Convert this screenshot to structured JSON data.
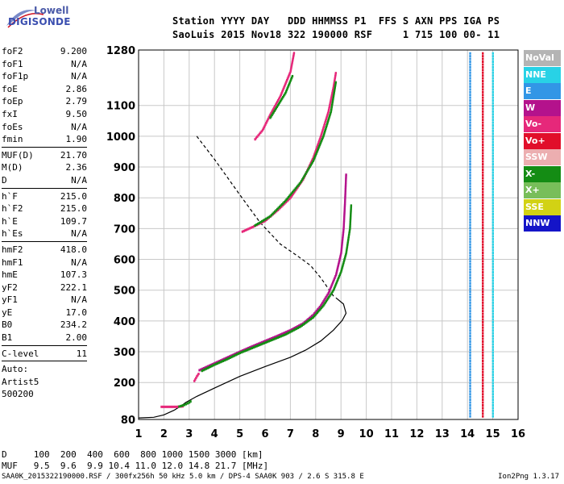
{
  "logo": {
    "top": "Lowell",
    "bottom": "DIGISONDE"
  },
  "header": {
    "line1": "Station YYYY DAY   DDD HHMMSS P1  FFS S AXN PPS IGA PS",
    "line2": "SaoLuis 2015 Nov18 322 190000 RSF     1 715 100 00- 11"
  },
  "params": [
    {
      "name": "foF2",
      "value": "9.200"
    },
    {
      "name": "foF1",
      "value": "N/A"
    },
    {
      "name": "foF1p",
      "value": "N/A"
    },
    {
      "name": "foE",
      "value": "2.86"
    },
    {
      "name": "foEp",
      "value": "2.79"
    },
    {
      "name": "fxI",
      "value": "9.50"
    },
    {
      "name": "foEs",
      "value": "N/A"
    },
    {
      "name": "fmin",
      "value": "1.90"
    },
    {
      "sep": true
    },
    {
      "name": "MUF(D)",
      "value": "21.70"
    },
    {
      "name": "M(D)",
      "value": "2.36"
    },
    {
      "name": "D",
      "value": "N/A"
    },
    {
      "sep": true
    },
    {
      "name": "h`F",
      "value": "215.0"
    },
    {
      "name": "h`F2",
      "value": "215.0"
    },
    {
      "name": "h`E",
      "value": "109.7"
    },
    {
      "name": "h`Es",
      "value": "N/A"
    },
    {
      "sep": true
    },
    {
      "name": "hmF2",
      "value": "418.0"
    },
    {
      "name": "hmF1",
      "value": "N/A"
    },
    {
      "name": "hmE",
      "value": "107.3"
    },
    {
      "name": "yF2",
      "value": "222.1"
    },
    {
      "name": "yF1",
      "value": "N/A"
    },
    {
      "name": "yE",
      "value": "17.0"
    },
    {
      "name": "B0",
      "value": "234.2"
    },
    {
      "name": "B1",
      "value": "2.00"
    },
    {
      "sep": true
    },
    {
      "name": "C-level",
      "value": "11"
    },
    {
      "sep": true
    },
    {
      "text": "Auto:"
    },
    {
      "text": "Artist5"
    },
    {
      "text": "500200"
    }
  ],
  "legend": [
    {
      "label": "NoVal",
      "color": "#b4b4b4"
    },
    {
      "label": "NNE",
      "color": "#28d2e6"
    },
    {
      "label": "E",
      "color": "#3296e6"
    },
    {
      "label": "W",
      "color": "#b4128c"
    },
    {
      "label": "Vo-",
      "color": "#e6287a"
    },
    {
      "label": "Vo+",
      "color": "#e10e2a"
    },
    {
      "label": "SSW",
      "color": "#ecaeb0"
    },
    {
      "label": "X-",
      "color": "#148c14"
    },
    {
      "label": "X+",
      "color": "#78be5a"
    },
    {
      "label": "SSE",
      "color": "#d2d214"
    },
    {
      "label": "NNW",
      "color": "#1414c8"
    }
  ],
  "muf_table": {
    "row1": "D     100  200  400  600  800 1000 1500 3000 [km]",
    "row2": "MUF   9.5  9.6  9.9 10.4 11.0 12.0 14.8 21.7 [MHz]"
  },
  "footer": {
    "left": "SAA0K_2015322190000.RSF / 300fx256h 50 kHz 5.0 km / DPS-4 SAA0K 903 / 2.6 S 315.8 E",
    "right": "Ion2Png 1.3.17"
  },
  "chart_data": {
    "type": "scatter",
    "xlim": [
      1,
      16
    ],
    "ylim": [
      80,
      1280
    ],
    "x_ticks": [
      1,
      2,
      3,
      4,
      5,
      6,
      7,
      8,
      9,
      10,
      11,
      12,
      13,
      14,
      15,
      16
    ],
    "y_ticks": [
      80,
      200,
      300,
      400,
      500,
      600,
      700,
      800,
      900,
      1000,
      1100,
      1280
    ],
    "grid": true,
    "series": [
      {
        "color": "#b4128c",
        "values": [
          [
            3.4,
            240
          ],
          [
            3.8,
            255
          ],
          [
            4.2,
            270
          ],
          [
            4.6,
            285
          ],
          [
            5.0,
            300
          ],
          [
            5.5,
            318
          ],
          [
            6.0,
            335
          ],
          [
            6.5,
            352
          ],
          [
            7.0,
            370
          ],
          [
            7.5,
            392
          ],
          [
            7.9,
            420
          ],
          [
            8.2,
            450
          ],
          [
            8.5,
            490
          ],
          [
            8.8,
            550
          ],
          [
            9.0,
            620
          ],
          [
            9.1,
            700
          ],
          [
            9.15,
            780
          ],
          [
            9.2,
            880
          ]
        ]
      },
      {
        "color": "#148c14",
        "values": [
          [
            3.5,
            238
          ],
          [
            4.0,
            258
          ],
          [
            4.5,
            276
          ],
          [
            5.0,
            296
          ],
          [
            5.6,
            316
          ],
          [
            6.2,
            336
          ],
          [
            6.8,
            356
          ],
          [
            7.4,
            382
          ],
          [
            7.9,
            412
          ],
          [
            8.3,
            450
          ],
          [
            8.7,
            500
          ],
          [
            9.0,
            560
          ],
          [
            9.2,
            620
          ],
          [
            9.35,
            700
          ],
          [
            9.4,
            780
          ]
        ]
      },
      {
        "color": "#e6287a",
        "values": [
          [
            5.1,
            690
          ],
          [
            5.5,
            705
          ],
          [
            6.0,
            725
          ],
          [
            6.5,
            760
          ],
          [
            7.0,
            800
          ],
          [
            7.5,
            860
          ],
          [
            7.9,
            930
          ],
          [
            8.2,
            1000
          ],
          [
            8.5,
            1080
          ],
          [
            8.7,
            1160
          ],
          [
            8.8,
            1210
          ]
        ]
      },
      {
        "color": "#148c14",
        "values": [
          [
            5.6,
            710
          ],
          [
            6.2,
            740
          ],
          [
            6.8,
            790
          ],
          [
            7.4,
            850
          ],
          [
            7.9,
            920
          ],
          [
            8.3,
            1000
          ],
          [
            8.6,
            1080
          ],
          [
            8.8,
            1180
          ]
        ]
      },
      {
        "color": "#e6287a",
        "values": [
          [
            5.6,
            990
          ],
          [
            5.9,
            1020
          ],
          [
            6.2,
            1070
          ],
          [
            6.6,
            1130
          ],
          [
            7.0,
            1210
          ],
          [
            7.15,
            1275
          ]
        ]
      },
      {
        "color": "#148c14",
        "values": [
          [
            6.2,
            1060
          ],
          [
            6.5,
            1100
          ],
          [
            6.8,
            1140
          ],
          [
            7.1,
            1200
          ]
        ]
      },
      {
        "color": "#e6287a",
        "values": [
          [
            3.2,
            205
          ],
          [
            3.3,
            220
          ],
          [
            3.4,
            232
          ]
        ]
      },
      {
        "color": "#e6287a",
        "values": [
          [
            1.9,
            121
          ],
          [
            2.2,
            121
          ],
          [
            2.5,
            121
          ],
          [
            2.8,
            123
          ]
        ]
      },
      {
        "color": "#148c14",
        "values": [
          [
            2.6,
            122
          ],
          [
            2.8,
            127
          ],
          [
            3.0,
            135
          ],
          [
            3.1,
            142
          ]
        ]
      }
    ],
    "profile": [
      [
        1.0,
        85
      ],
      [
        1.6,
        87
      ],
      [
        2.0,
        95
      ],
      [
        2.4,
        110
      ],
      [
        2.7,
        125
      ],
      [
        2.86,
        135
      ],
      [
        3.3,
        155
      ],
      [
        4.0,
        182
      ],
      [
        5.0,
        220
      ],
      [
        6.0,
        252
      ],
      [
        7.0,
        282
      ],
      [
        7.6,
        305
      ],
      [
        8.2,
        335
      ],
      [
        8.7,
        370
      ],
      [
        9.05,
        402
      ],
      [
        9.2,
        425
      ],
      [
        9.1,
        455
      ],
      [
        8.8,
        475
      ]
    ],
    "dashed": [
      [
        3.3,
        1000
      ],
      [
        4.0,
        925
      ],
      [
        5.0,
        810
      ],
      [
        5.8,
        720
      ],
      [
        6.6,
        650
      ],
      [
        7.3,
        610
      ],
      [
        7.8,
        580
      ],
      [
        8.2,
        540
      ],
      [
        8.5,
        505
      ],
      [
        8.75,
        475
      ]
    ]
  }
}
